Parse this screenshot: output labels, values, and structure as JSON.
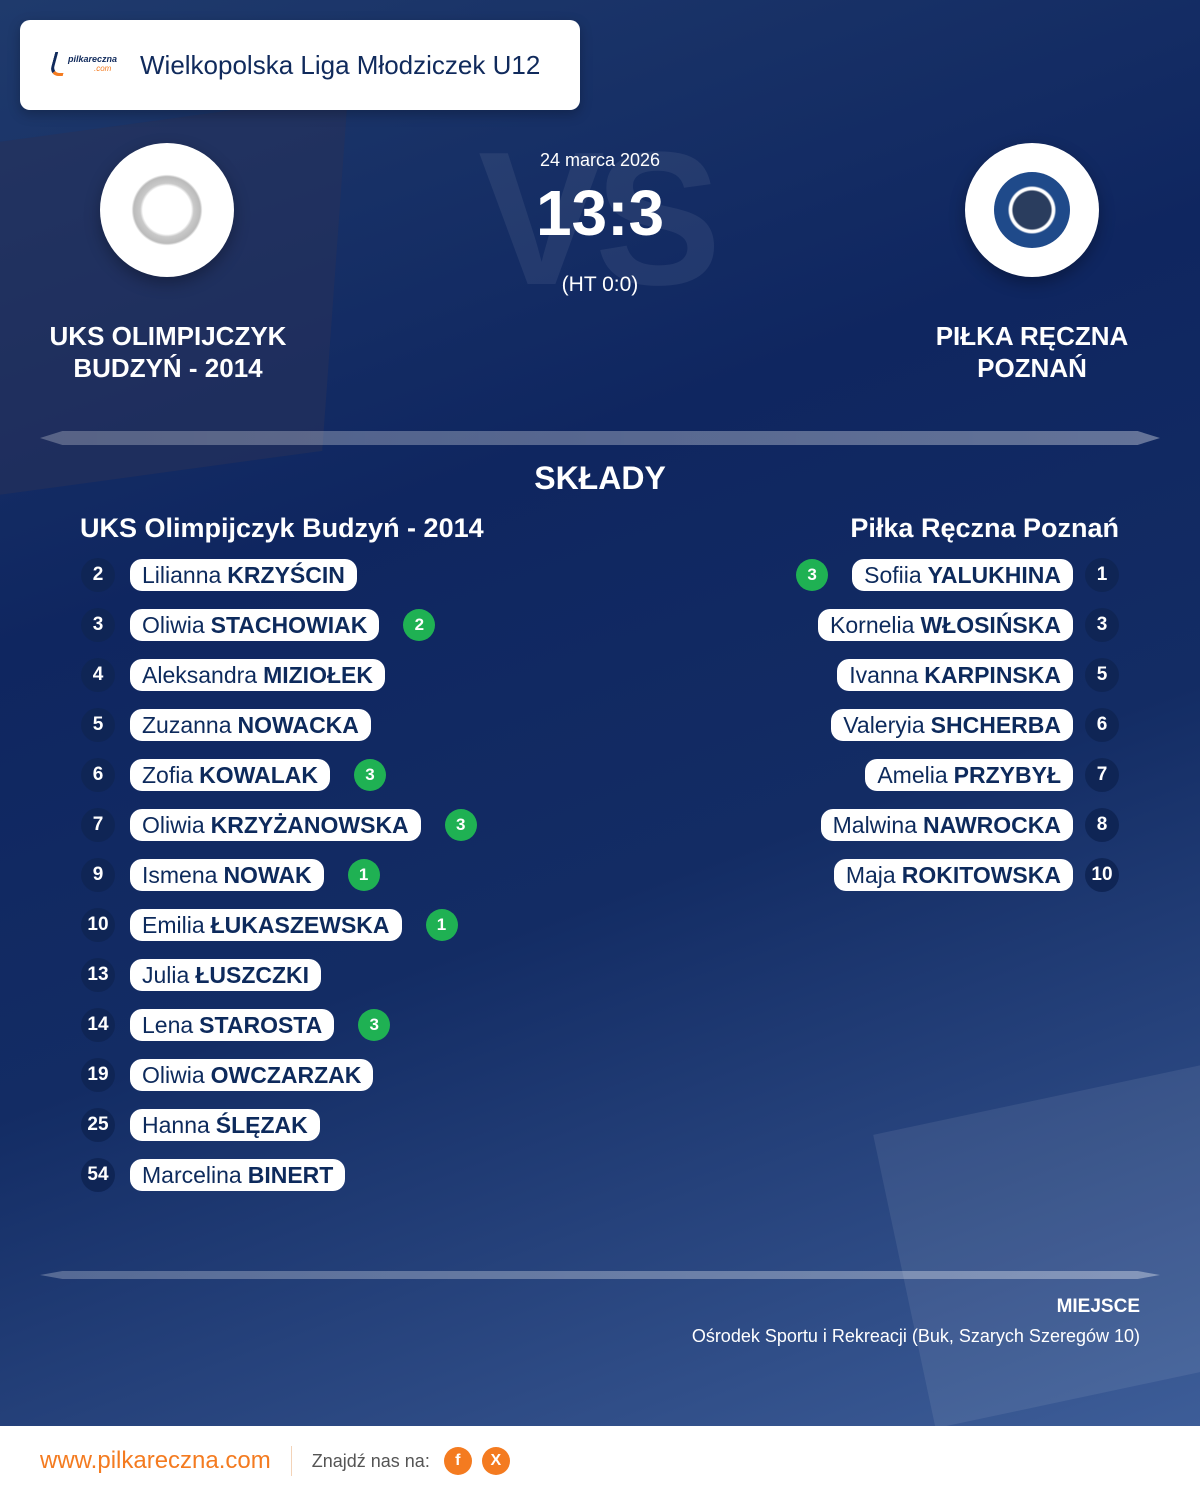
{
  "header": {
    "league": "Wielkopolska Liga Młodziczek U12",
    "logo_text": "pilkareczna.com"
  },
  "match": {
    "date": "24 marca 2026",
    "score": "13:3",
    "halftime": "(HT 0:0)",
    "vs": "VS"
  },
  "home": {
    "name": "UKS OLIMPIJCZYK BUDZYŃ - 2014",
    "lineup_title": "UKS Olimpijczyk Budzyń - 2014",
    "players": [
      {
        "number": "2",
        "first": "Lilianna",
        "last": "KRZYŚCIN",
        "goals": ""
      },
      {
        "number": "3",
        "first": "Oliwia",
        "last": "STACHOWIAK",
        "goals": "2"
      },
      {
        "number": "4",
        "first": "Aleksandra",
        "last": "MIZIOŁEK",
        "goals": ""
      },
      {
        "number": "5",
        "first": "Zuzanna",
        "last": "NOWACKA",
        "goals": ""
      },
      {
        "number": "6",
        "first": "Zofia",
        "last": "KOWALAK",
        "goals": "3"
      },
      {
        "number": "7",
        "first": "Oliwia",
        "last": "KRZYŻANOWSKA",
        "goals": "3"
      },
      {
        "number": "9",
        "first": "Ismena",
        "last": "NOWAK",
        "goals": "1"
      },
      {
        "number": "10",
        "first": "Emilia",
        "last": "ŁUKASZEWSKA",
        "goals": "1"
      },
      {
        "number": "13",
        "first": "Julia",
        "last": "ŁUSZCZKI",
        "goals": ""
      },
      {
        "number": "14",
        "first": "Lena",
        "last": "STAROSTA",
        "goals": "3"
      },
      {
        "number": "19",
        "first": "Oliwia",
        "last": "OWCZARZAK",
        "goals": ""
      },
      {
        "number": "25",
        "first": "Hanna",
        "last": "ŚLĘZAK",
        "goals": ""
      },
      {
        "number": "54",
        "first": "Marcelina",
        "last": "BINERT",
        "goals": ""
      }
    ]
  },
  "away": {
    "name": "PIŁKA RĘCZNA POZNAŃ",
    "lineup_title": "Piłka Ręczna Poznań",
    "players": [
      {
        "number": "1",
        "first": "Sofiia",
        "last": "YALUKHINA",
        "goals": "3"
      },
      {
        "number": "3",
        "first": "Kornelia",
        "last": "WŁOSIŃSKA",
        "goals": ""
      },
      {
        "number": "5",
        "first": "Ivanna",
        "last": "KARPINSKA",
        "goals": ""
      },
      {
        "number": "6",
        "first": "Valeryia",
        "last": "SHCHERBA",
        "goals": ""
      },
      {
        "number": "7",
        "first": "Amelia",
        "last": "PRZYBYŁ",
        "goals": ""
      },
      {
        "number": "8",
        "first": "Malwina",
        "last": "NAWROCKA",
        "goals": ""
      },
      {
        "number": "10",
        "first": "Maja",
        "last": "ROKITOWSKA",
        "goals": ""
      }
    ]
  },
  "lineups_title": "SKŁADY",
  "venue": {
    "label": "MIEJSCE",
    "value": "Ośrodek Sportu i Rekreacji (Buk, Szarych Szeregów 10)"
  },
  "footer": {
    "site": "www.pilkareczna.com",
    "find_us": "Znajdź nas na:",
    "facebook": "f",
    "x": "X"
  },
  "colors": {
    "navy": "#0f2555",
    "goal": "#1fb153",
    "accent": "#f47b20"
  }
}
